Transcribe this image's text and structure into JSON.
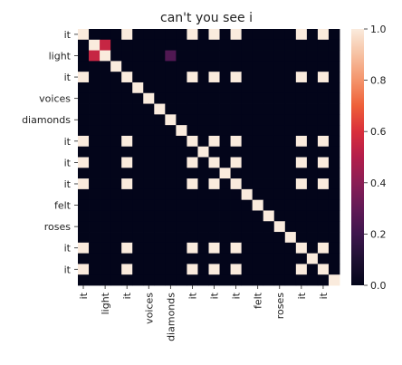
{
  "chart_data": {
    "type": "heatmap",
    "title": "can't you see i",
    "tokens": [
      "it",
      "",
      "light",
      "",
      "it",
      "",
      "voices",
      "",
      "diamonds",
      "",
      "it",
      "",
      "it",
      "",
      "it",
      "",
      "felt",
      "",
      "roses",
      "",
      "it",
      "",
      "it",
      ""
    ],
    "x_tick_labels": [
      "it",
      "light",
      "it",
      "voices",
      "diamonds",
      "it",
      "it",
      "it",
      "felt",
      "roses",
      "it",
      "it"
    ],
    "y_tick_labels": [
      "it",
      "light",
      "it",
      "voices",
      "diamonds",
      "it",
      "it",
      "it",
      "felt",
      "roses",
      "it",
      "it"
    ],
    "matrix": [
      [
        1,
        0,
        0,
        0,
        1,
        0,
        0,
        0,
        0,
        0,
        1,
        0,
        1,
        0,
        1,
        0,
        0,
        0,
        0,
        0,
        1,
        0,
        1,
        0
      ],
      [
        0,
        1,
        0.55,
        0,
        0,
        0,
        0,
        0,
        0,
        0,
        0,
        0,
        0,
        0,
        0,
        0,
        0,
        0,
        0,
        0,
        0,
        0,
        0,
        0
      ],
      [
        0,
        0.55,
        1,
        0,
        0,
        0,
        0,
        0,
        0.25,
        0,
        0,
        0,
        0,
        0,
        0,
        0,
        0,
        0,
        0,
        0,
        0,
        0,
        0,
        0
      ],
      [
        0,
        0,
        0,
        1,
        0,
        0,
        0,
        0,
        0,
        0,
        0,
        0,
        0,
        0,
        0,
        0,
        0,
        0,
        0,
        0,
        0,
        0,
        0,
        0
      ],
      [
        1,
        0,
        0,
        0,
        1,
        0,
        0,
        0,
        0,
        0,
        1,
        0,
        1,
        0,
        1,
        0,
        0,
        0,
        0,
        0,
        1,
        0,
        1,
        0
      ],
      [
        0,
        0,
        0,
        0,
        0,
        1,
        0,
        0,
        0,
        0,
        0,
        0,
        0,
        0,
        0,
        0,
        0,
        0,
        0,
        0,
        0,
        0,
        0,
        0
      ],
      [
        0,
        0,
        0,
        0,
        0,
        0,
        1,
        0,
        0,
        0,
        0,
        0,
        0,
        0,
        0,
        0,
        0,
        0,
        0,
        0,
        0,
        0,
        0,
        0
      ],
      [
        0,
        0,
        0,
        0,
        0,
        0,
        0,
        1,
        0,
        0,
        0,
        0,
        0,
        0,
        0,
        0,
        0,
        0,
        0,
        0,
        0,
        0,
        0,
        0
      ],
      [
        0,
        0,
        0,
        0,
        0,
        0,
        0,
        0,
        1,
        0,
        0,
        0,
        0,
        0,
        0,
        0,
        0,
        0,
        0,
        0,
        0,
        0,
        0,
        0
      ],
      [
        0,
        0,
        0,
        0,
        0,
        0,
        0,
        0,
        0,
        1,
        0,
        0,
        0,
        0,
        0,
        0,
        0,
        0,
        0,
        0,
        0,
        0,
        0,
        0
      ],
      [
        1,
        0,
        0,
        0,
        1,
        0,
        0,
        0,
        0,
        0,
        1,
        0,
        1,
        0,
        1,
        0,
        0,
        0,
        0,
        0,
        1,
        0,
        1,
        0
      ],
      [
        0,
        0,
        0,
        0,
        0,
        0,
        0,
        0,
        0,
        0,
        0,
        1,
        0,
        0,
        0,
        0,
        0,
        0,
        0,
        0,
        0,
        0,
        0,
        0
      ],
      [
        1,
        0,
        0,
        0,
        1,
        0,
        0,
        0,
        0,
        0,
        1,
        0,
        1,
        0,
        1,
        0,
        0,
        0,
        0,
        0,
        1,
        0,
        1,
        0
      ],
      [
        0,
        0,
        0,
        0,
        0,
        0,
        0,
        0,
        0,
        0,
        0,
        0,
        0,
        1,
        0,
        0,
        0,
        0,
        0,
        0,
        0,
        0,
        0,
        0
      ],
      [
        1,
        0,
        0,
        0,
        1,
        0,
        0,
        0,
        0,
        0,
        1,
        0,
        1,
        0,
        1,
        0,
        0,
        0,
        0,
        0,
        1,
        0,
        1,
        0
      ],
      [
        0,
        0,
        0,
        0,
        0,
        0,
        0,
        0,
        0,
        0,
        0,
        0,
        0,
        0,
        0,
        1,
        0,
        0,
        0,
        0,
        0,
        0,
        0,
        0
      ],
      [
        0,
        0,
        0,
        0,
        0,
        0,
        0,
        0,
        0,
        0,
        0,
        0,
        0,
        0,
        0,
        0,
        1,
        0,
        0,
        0,
        0,
        0,
        0,
        0
      ],
      [
        0,
        0,
        0,
        0,
        0,
        0,
        0,
        0,
        0,
        0,
        0,
        0,
        0,
        0,
        0,
        0,
        0,
        1,
        0,
        0,
        0,
        0,
        0,
        0
      ],
      [
        0,
        0,
        0,
        0,
        0,
        0,
        0,
        0,
        0,
        0,
        0,
        0,
        0,
        0,
        0,
        0,
        0,
        0,
        1,
        0,
        0,
        0,
        0,
        0
      ],
      [
        0,
        0,
        0,
        0,
        0,
        0,
        0,
        0,
        0,
        0,
        0,
        0,
        0,
        0,
        0,
        0,
        0,
        0,
        0,
        1,
        0,
        0,
        0,
        0
      ],
      [
        1,
        0,
        0,
        0,
        1,
        0,
        0,
        0,
        0,
        0,
        1,
        0,
        1,
        0,
        1,
        0,
        0,
        0,
        0,
        0,
        1,
        0,
        1,
        0
      ],
      [
        0,
        0,
        0,
        0,
        0,
        0,
        0,
        0,
        0,
        0,
        0,
        0,
        0,
        0,
        0,
        0,
        0,
        0,
        0,
        0,
        0,
        1,
        0,
        0
      ],
      [
        1,
        0,
        0,
        0,
        1,
        0,
        0,
        0,
        0,
        0,
        1,
        0,
        1,
        0,
        1,
        0,
        0,
        0,
        0,
        0,
        1,
        0,
        1,
        0
      ],
      [
        0,
        0,
        0,
        0,
        0,
        0,
        0,
        0,
        0,
        0,
        0,
        0,
        0,
        0,
        0,
        0,
        0,
        0,
        0,
        0,
        0,
        0,
        0,
        1
      ]
    ],
    "colorbar": {
      "range": [
        0,
        1
      ],
      "ticks": [
        "0.0",
        "0.2",
        "0.4",
        "0.6",
        "0.8",
        "1.0"
      ]
    },
    "colormap": "rocket"
  }
}
